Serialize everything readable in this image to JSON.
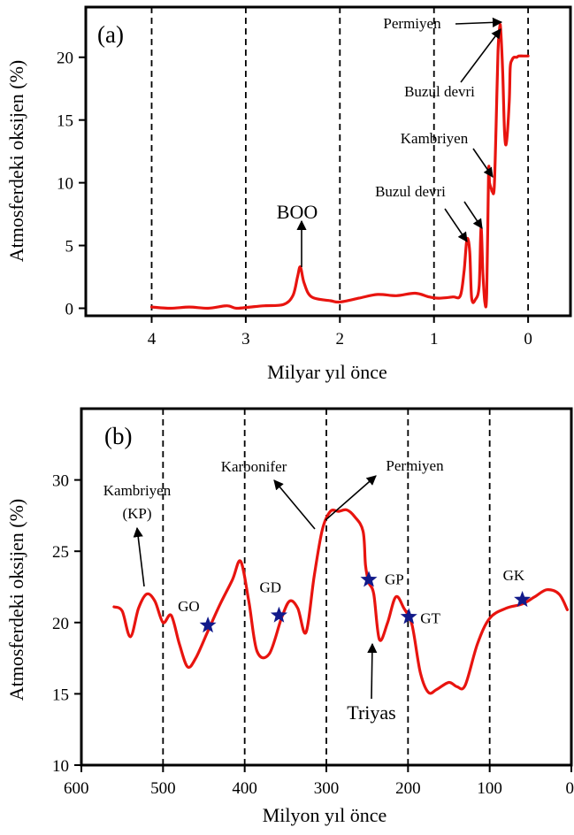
{
  "chart_data": [
    {
      "panel_label": "(a)",
      "type": "line",
      "xlabel": "Milyar yıl önce",
      "ylabel": "Atmosferdeki oksijen (%)",
      "xlim": [
        4.7,
        -0.45
      ],
      "ylim": [
        -0.6,
        24
      ],
      "x_ticks": [
        "4",
        "3",
        "2",
        "1",
        "0"
      ],
      "y_ticks": [
        "0",
        "5",
        "10",
        "15",
        "20"
      ],
      "series": [
        {
          "x": [
            4.0,
            3.8,
            3.6,
            3.4,
            3.2,
            3.1,
            2.95,
            2.8,
            2.6,
            2.5,
            2.45,
            2.42,
            2.38,
            2.3,
            2.1,
            2.0,
            1.8,
            1.6,
            1.4,
            1.2,
            1.05,
            0.95,
            0.8,
            0.72,
            0.68,
            0.65,
            0.62,
            0.6,
            0.56,
            0.52,
            0.5,
            0.48,
            0.46,
            0.44,
            0.42,
            0.41,
            0.39,
            0.38,
            0.36,
            0.34,
            0.32,
            0.3,
            0.29,
            0.27,
            0.25,
            0.23,
            0.2,
            0.19,
            0.17,
            0.15,
            0.12,
            0.1,
            0.05,
            0.0
          ],
          "y": [
            0.1,
            0.0,
            0.1,
            0.0,
            0.2,
            0.0,
            0.1,
            0.2,
            0.3,
            1.0,
            2.5,
            3.3,
            2.0,
            0.9,
            0.6,
            0.5,
            0.8,
            1.1,
            1.0,
            1.2,
            0.9,
            0.8,
            0.9,
            1.0,
            3.0,
            5.5,
            4.5,
            0.8,
            0.7,
            1.8,
            6.4,
            2.8,
            0.5,
            1.2,
            10.8,
            10.0,
            9.5,
            9.3,
            9.6,
            14.5,
            20.5,
            22.5,
            22.0,
            18.8,
            14.0,
            13.2,
            16.5,
            19.2,
            19.8,
            20.0,
            20.0,
            20.1,
            20.1,
            20.1
          ]
        }
      ],
      "annotations": [
        "BOO",
        "Buzul devri",
        "Kambriyen",
        "Buzul devri",
        "Permiyen"
      ]
    },
    {
      "panel_label": "(b)",
      "type": "line",
      "xlabel": "Milyon yıl önce",
      "ylabel": "Atmosferdeki oksijen (%)",
      "xlim": [
        600,
        0
      ],
      "ylim": [
        10,
        35
      ],
      "x_ticks": [
        "600",
        "500",
        "400",
        "300",
        "200",
        "100",
        "0"
      ],
      "y_ticks": [
        "10",
        "15",
        "20",
        "25",
        "30"
      ],
      "series": [
        {
          "x": [
            560,
            550,
            540,
            530,
            520,
            510,
            500,
            490,
            480,
            470,
            460,
            445,
            430,
            415,
            405,
            395,
            385,
            370,
            355,
            345,
            335,
            325,
            315,
            305,
            295,
            285,
            275,
            265,
            255,
            252,
            248,
            242,
            235,
            225,
            215,
            205,
            195,
            185,
            175,
            165,
            150,
            140,
            130,
            115,
            100,
            80,
            60,
            45,
            30,
            15,
            5
          ],
          "y": [
            21.1,
            20.8,
            19.0,
            21.0,
            22.0,
            21.5,
            20.0,
            20.5,
            18.5,
            16.9,
            17.5,
            19.4,
            21.3,
            23.0,
            24.3,
            21.5,
            18.0,
            17.8,
            20.3,
            21.5,
            21.0,
            19.3,
            23.2,
            26.5,
            27.8,
            27.8,
            27.9,
            27.4,
            26.4,
            24.0,
            22.8,
            22.0,
            18.8,
            20.0,
            21.8,
            21.0,
            19.8,
            16.5,
            15.1,
            15.3,
            15.8,
            15.5,
            15.6,
            18.5,
            20.3,
            21.0,
            21.3,
            21.8,
            22.3,
            22.0,
            20.9
          ]
        }
      ],
      "markers": [
        {
          "label": "GO",
          "x": 445,
          "y": 19.8
        },
        {
          "label": "GD",
          "x": 358,
          "y": 20.5
        },
        {
          "label": "GP",
          "x": 248,
          "y": 23.0
        },
        {
          "label": "GT",
          "x": 199,
          "y": 20.4
        },
        {
          "label": "GK",
          "x": 60,
          "y": 21.6
        }
      ],
      "annotations": [
        "Kambriyen",
        "(KP)",
        "Karbonifer",
        "Permiyen",
        "Triyas"
      ]
    }
  ]
}
